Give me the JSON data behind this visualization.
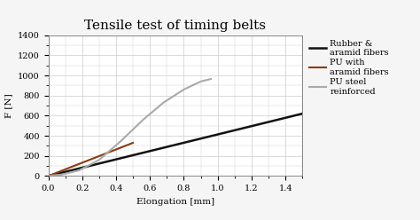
{
  "title": "Tensile test of timing belts",
  "xlabel": "Elongation [mm]",
  "ylabel": "F [N]",
  "xlim": [
    0.0,
    1.5
  ],
  "ylim": [
    0,
    1400
  ],
  "xticks": [
    0.0,
    0.2,
    0.4,
    0.6,
    0.8,
    1.0,
    1.2,
    1.4
  ],
  "yticks": [
    0,
    200,
    400,
    600,
    800,
    1000,
    1200,
    1400
  ],
  "lines": [
    {
      "label": "Rubber &\naramid fibers",
      "color": "#111111",
      "linewidth": 1.8,
      "x": [
        0.0,
        1.5
      ],
      "y": [
        0,
        620
      ]
    },
    {
      "label": "PU with\naramid fibers",
      "color": "#8B3A0F",
      "linewidth": 1.5,
      "x": [
        0.0,
        0.5
      ],
      "y": [
        0,
        330
      ]
    },
    {
      "label": "PU steel\nreinforced",
      "color": "#aaaaaa",
      "linewidth": 1.5,
      "x": [
        0.0,
        0.08,
        0.18,
        0.3,
        0.43,
        0.56,
        0.68,
        0.8,
        0.9,
        0.96
      ],
      "y": [
        0,
        15,
        55,
        160,
        350,
        560,
        730,
        860,
        940,
        965
      ]
    }
  ],
  "background_color": "#f5f5f5",
  "plot_background_color": "#ffffff",
  "grid_color": "#cccccc",
  "border_color": "#cccccc",
  "title_fontsize": 11,
  "label_fontsize": 7.5,
  "tick_fontsize": 7,
  "legend_fontsize": 7
}
